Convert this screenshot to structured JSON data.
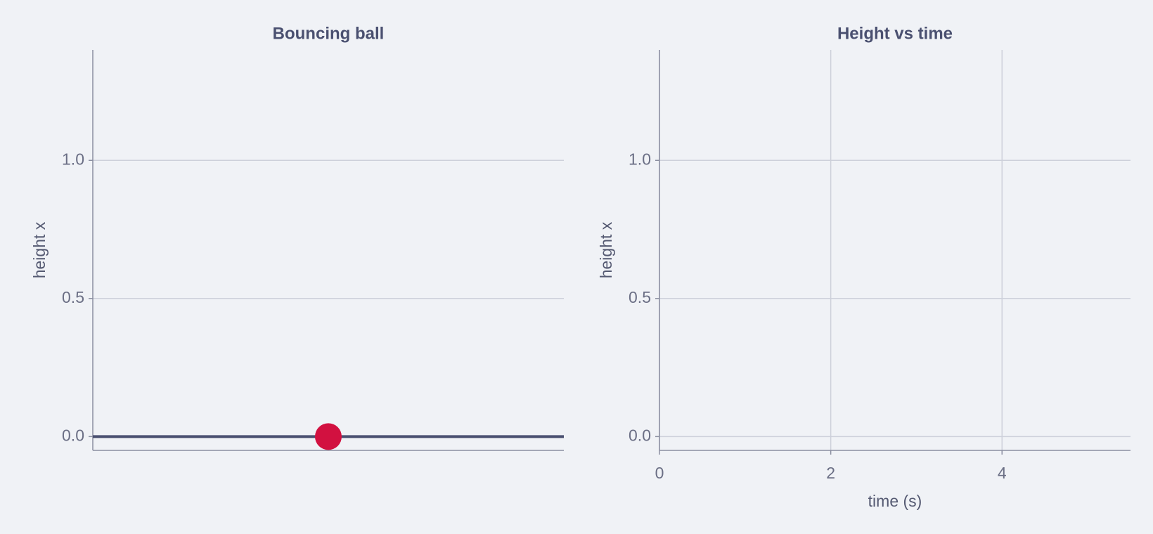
{
  "chart_data": [
    {
      "type": "scatter",
      "title": "Bouncing ball",
      "ylabel": "height x",
      "x": [
        0
      ],
      "values": [
        0
      ],
      "color": "#d21140",
      "ground": {
        "x": [
          -1,
          1
        ],
        "values": [
          0,
          0
        ],
        "color": "#4a5070"
      },
      "xlim": [
        -1,
        1
      ],
      "ylim": [
        -0.05,
        1.4
      ],
      "yticks": [
        {
          "value": 0,
          "label": "0.0"
        },
        {
          "value": 0.5,
          "label": "0.5"
        },
        {
          "value": 1,
          "label": "1.0"
        }
      ],
      "grid": true
    },
    {
      "type": "line",
      "title": "Height vs time",
      "ylabel": "height x",
      "xlabel": "time (s)",
      "xlim": [
        0,
        5.5
      ],
      "ylim": [
        -0.05,
        1.4
      ],
      "xticks": [
        0,
        2,
        4
      ],
      "yticks": [
        {
          "value": 0,
          "label": "0.0"
        },
        {
          "value": 0.5,
          "label": "0.5"
        },
        {
          "value": 1,
          "label": "1.0"
        }
      ],
      "grid": true
    }
  ]
}
